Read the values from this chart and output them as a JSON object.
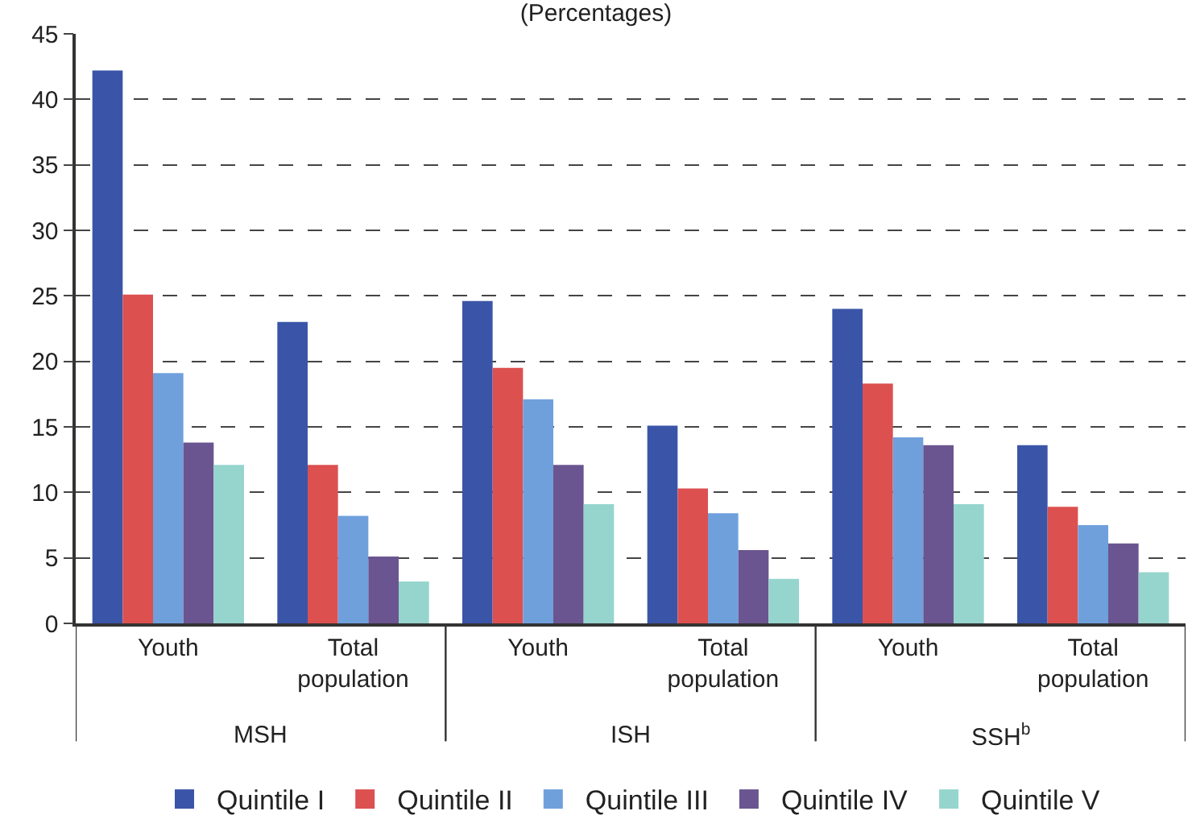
{
  "chart_data": {
    "type": "bar",
    "title": "(Percentages)",
    "categories": [
      "Youth",
      "Total population",
      "Youth",
      "Total population",
      "Youth",
      "Total population"
    ],
    "series": [
      {
        "name": "Quintile I",
        "color": "#3a55a8",
        "values": [
          42.2,
          23.0,
          24.6,
          15.1,
          24.0,
          13.6
        ]
      },
      {
        "name": "Quintile II",
        "color": "#dc5050",
        "values": [
          25.1,
          12.1,
          19.5,
          10.3,
          18.3,
          8.9
        ]
      },
      {
        "name": "Quintile III",
        "color": "#6fa0dc",
        "values": [
          19.1,
          8.2,
          17.1,
          8.4,
          14.2,
          7.5
        ]
      },
      {
        "name": "Quintile IV",
        "color": "#6a5590",
        "values": [
          13.8,
          5.1,
          12.1,
          5.6,
          13.6,
          6.1
        ]
      },
      {
        "name": "Quintile V",
        "color": "#96d5ce",
        "values": [
          12.1,
          3.2,
          9.1,
          3.4,
          9.1,
          3.9
        ]
      }
    ],
    "annotations": [
      "MSH",
      "ISH",
      "SSH$^{b}$"
    ],
    "ylim": [
      0,
      45
    ],
    "yticks": [
      0,
      5,
      10,
      15,
      20,
      25,
      30,
      35,
      40,
      45
    ],
    "grid": "y",
    "legend": "bottom"
  }
}
